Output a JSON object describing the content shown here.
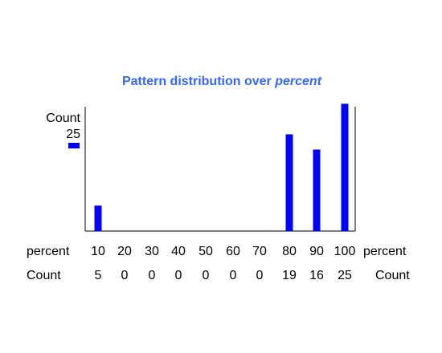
{
  "chart_data": {
    "type": "bar",
    "title_prefix": "Pattern distribution over ",
    "title_emphasis": "percent",
    "y_axis_label": "Count",
    "y_tick_label": "25",
    "x_row_label_left": "percent",
    "x_row_label_right": "percent",
    "count_row_label_left": "Count",
    "count_row_label_right": "Count",
    "categories": [
      "10",
      "20",
      "30",
      "40",
      "50",
      "60",
      "70",
      "80",
      "90",
      "100"
    ],
    "values": [
      5,
      0,
      0,
      0,
      0,
      0,
      0,
      19,
      16,
      25
    ],
    "value_labels": [
      "5",
      "0",
      "0",
      "0",
      "0",
      "0",
      "0",
      "19",
      "16",
      "25"
    ],
    "ylim": [
      0,
      26
    ],
    "bar_color": "#0000ff",
    "title_color": "#3366ff",
    "grid": false
  }
}
